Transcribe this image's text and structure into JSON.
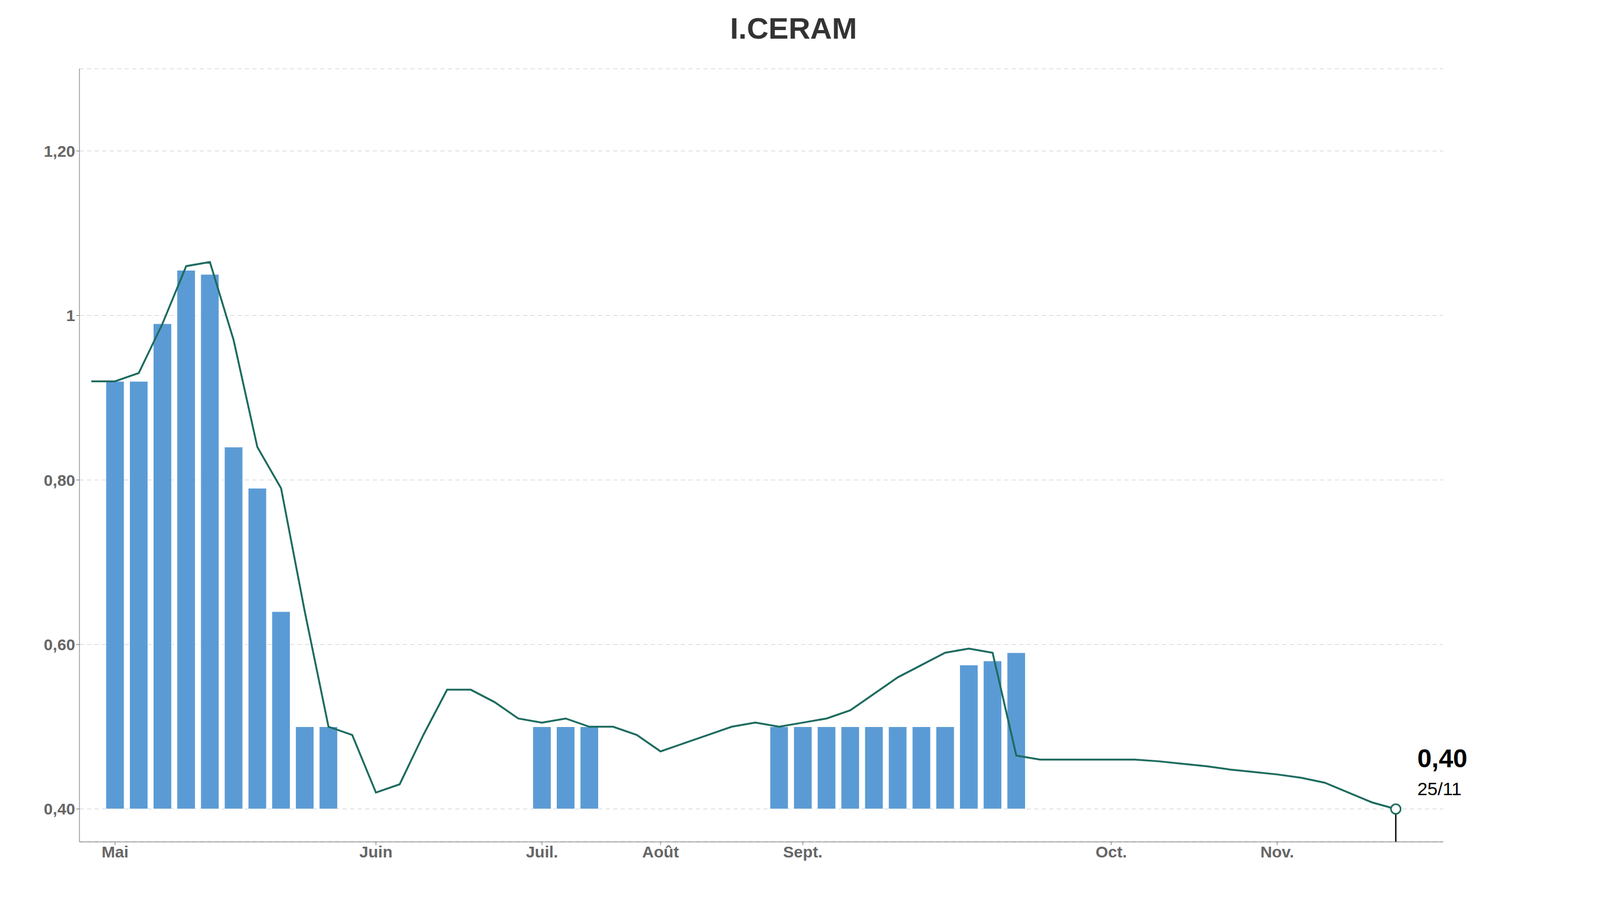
{
  "chart_data": {
    "type": "bar",
    "title": "I.CERAM",
    "xlim": [
      -0.5,
      57
    ],
    "xticks": [
      {
        "value": 1,
        "label": "Mai"
      },
      {
        "value": 12,
        "label": "Juin"
      },
      {
        "value": 19,
        "label": "Juil."
      },
      {
        "value": 24,
        "label": "Août"
      },
      {
        "value": 30,
        "label": "Sept."
      },
      {
        "value": 43,
        "label": "Oct."
      },
      {
        "value": 50,
        "label": "Nov."
      }
    ],
    "ylim": [
      0.36,
      1.3
    ],
    "yticks": [
      {
        "value": 0.4,
        "label": "0,40"
      },
      {
        "value": 0.6,
        "label": "0,60"
      },
      {
        "value": 0.8,
        "label": "0,80"
      },
      1,
      {
        "value": 1.2,
        "label": "1,20"
      }
    ],
    "grid": true,
    "annotations": [
      "0,40",
      "25/11"
    ],
    "series": [
      {
        "type": "bar",
        "color": "#5b9bd5",
        "base": 0.4,
        "x": [
          1,
          2,
          3,
          4,
          5,
          6,
          7,
          8,
          9,
          10,
          19,
          20,
          21,
          29,
          30,
          31,
          32,
          33,
          34,
          35,
          36,
          37,
          38,
          39
        ],
        "values": [
          0.92,
          0.92,
          0.99,
          1.055,
          1.05,
          0.84,
          0.79,
          0.64,
          0.5,
          0.5,
          0.5,
          0.5,
          0.5,
          0.5,
          0.5,
          0.5,
          0.5,
          0.5,
          0.5,
          0.5,
          0.5,
          0.575,
          0.58,
          0.59
        ]
      },
      {
        "type": "line",
        "color": "#1d6b5e",
        "x": [
          0,
          1,
          2,
          3,
          4,
          5,
          6,
          7,
          8,
          9,
          10,
          11,
          12,
          13,
          14,
          15,
          16,
          17,
          18,
          19,
          20,
          21,
          22,
          23,
          24,
          25,
          26,
          27,
          28,
          29,
          30,
          31,
          32,
          33,
          34,
          35,
          36,
          37,
          38,
          39,
          40,
          41,
          42,
          43,
          44,
          45,
          46,
          47,
          48,
          49,
          50,
          51,
          52,
          53,
          54,
          55
        ],
        "values": [
          0.92,
          0.92,
          0.93,
          0.99,
          1.06,
          1.065,
          0.97,
          0.84,
          0.79,
          0.64,
          0.5,
          0.49,
          0.42,
          0.43,
          0.49,
          0.545,
          0.545,
          0.53,
          0.51,
          0.505,
          0.51,
          0.5,
          0.5,
          0.49,
          0.47,
          0.48,
          0.49,
          0.5,
          0.505,
          0.5,
          0.505,
          0.51,
          0.52,
          0.54,
          0.56,
          0.575,
          0.59,
          0.595,
          0.59,
          0.465,
          0.46,
          0.46,
          0.46,
          0.46,
          0.46,
          0.458,
          0.455,
          0.452,
          0.448,
          0.445,
          0.442,
          0.438,
          0.432,
          0.42,
          0.408,
          0.4
        ]
      }
    ]
  }
}
